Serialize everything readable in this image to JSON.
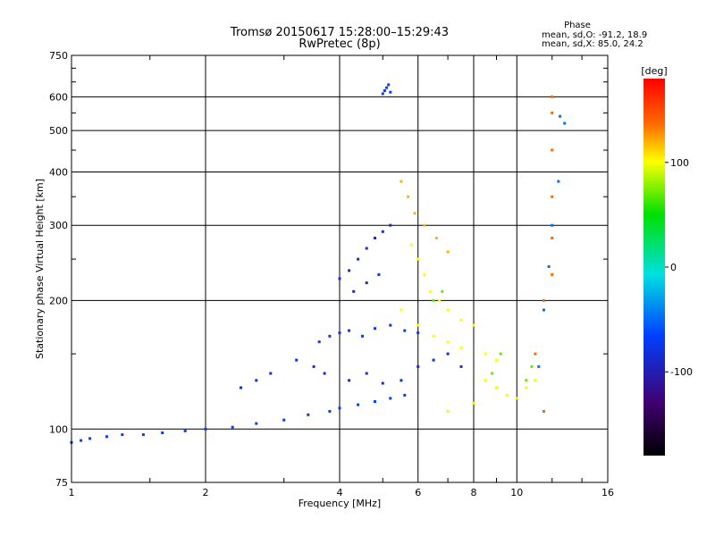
{
  "chart_data": {
    "type": "scatter",
    "title": "Tromsø 20150617 15:28:00–15:29:43",
    "subtitle": "RwPretec (8p)",
    "xlabel": "Frequency [MHz]",
    "ylabel": "Stationary phase Virtual Height [km]",
    "x_scale": "log",
    "y_scale": "log",
    "xlim": [
      1,
      16
    ],
    "ylim": [
      75,
      750
    ],
    "x_ticks": [
      1,
      2,
      4,
      6,
      8,
      10,
      16
    ],
    "y_ticks": [
      75,
      100,
      200,
      300,
      400,
      500,
      600,
      750
    ],
    "grid": true,
    "phase_box": {
      "title": "Phase",
      "line1": "mean, sd,O: -91.2, 18.9",
      "line2": "mean, sd,X: 85.0, 24.2"
    },
    "colorbar": {
      "label": "[deg]",
      "range": [
        -180,
        180
      ],
      "ticks": [
        100,
        0,
        -100
      ]
    },
    "trace_groups": [
      {
        "phase": -100,
        "points": [
          [
            1.0,
            93
          ],
          [
            1.05,
            94
          ],
          [
            1.1,
            95
          ],
          [
            1.2,
            96
          ],
          [
            1.3,
            97
          ],
          [
            1.45,
            97
          ],
          [
            1.6,
            98
          ],
          [
            1.8,
            99
          ],
          [
            2.0,
            100
          ],
          [
            2.3,
            101
          ],
          [
            2.6,
            103
          ],
          [
            3.0,
            105
          ],
          [
            3.4,
            108
          ],
          [
            3.8,
            110
          ],
          [
            4.0,
            112
          ],
          [
            4.4,
            114
          ],
          [
            4.8,
            116
          ],
          [
            5.2,
            118
          ],
          [
            5.6,
            120
          ]
        ]
      },
      {
        "phase": -110,
        "points": [
          [
            2.4,
            125
          ],
          [
            2.6,
            130
          ],
          [
            2.8,
            135
          ],
          [
            3.2,
            145
          ],
          [
            3.5,
            140
          ],
          [
            3.7,
            135
          ],
          [
            4.2,
            130
          ],
          [
            4.6,
            135
          ],
          [
            5.0,
            128
          ],
          [
            5.5,
            130
          ],
          [
            6.0,
            140
          ],
          [
            6.5,
            145
          ],
          [
            7.0,
            150
          ],
          [
            7.5,
            140
          ]
        ]
      },
      {
        "phase": -105,
        "points": [
          [
            3.6,
            160
          ],
          [
            3.8,
            165
          ],
          [
            4.0,
            168
          ],
          [
            4.2,
            170
          ],
          [
            4.5,
            165
          ],
          [
            4.8,
            172
          ],
          [
            5.2,
            175
          ],
          [
            5.6,
            170
          ],
          [
            6.0,
            168
          ]
        ]
      },
      {
        "phase": -110,
        "points": [
          [
            4.0,
            225
          ],
          [
            4.2,
            235
          ],
          [
            4.4,
            250
          ],
          [
            4.6,
            265
          ],
          [
            4.8,
            280
          ],
          [
            5.0,
            290
          ],
          [
            5.2,
            300
          ],
          [
            4.3,
            210
          ],
          [
            4.6,
            220
          ],
          [
            4.9,
            230
          ]
        ]
      },
      {
        "phase": -100,
        "points": [
          [
            5.0,
            610
          ],
          [
            5.05,
            620
          ],
          [
            5.1,
            630
          ],
          [
            5.15,
            640
          ],
          [
            5.2,
            615
          ]
        ]
      },
      {
        "phase": 100,
        "points": [
          [
            5.8,
            270
          ],
          [
            6.0,
            250
          ],
          [
            6.2,
            230
          ],
          [
            6.4,
            210
          ],
          [
            6.7,
            200
          ],
          [
            7.0,
            190
          ],
          [
            7.5,
            180
          ],
          [
            8.0,
            175
          ],
          [
            5.5,
            190
          ],
          [
            6.0,
            175
          ],
          [
            6.5,
            165
          ],
          [
            7.0,
            160
          ],
          [
            7.5,
            155
          ],
          [
            8.5,
            150
          ],
          [
            9.0,
            145
          ]
        ]
      },
      {
        "phase": 120,
        "points": [
          [
            5.5,
            380
          ],
          [
            5.7,
            350
          ],
          [
            5.9,
            320
          ],
          [
            6.2,
            300
          ],
          [
            6.6,
            280
          ],
          [
            7.0,
            260
          ]
        ]
      },
      {
        "phase": 90,
        "points": [
          [
            8.5,
            130
          ],
          [
            9.0,
            125
          ],
          [
            9.5,
            120
          ],
          [
            10.0,
            118
          ],
          [
            10.5,
            125
          ],
          [
            11.0,
            130
          ],
          [
            7.0,
            110
          ],
          [
            8.0,
            115
          ]
        ]
      },
      {
        "phase": 140,
        "points": [
          [
            12.0,
            600
          ],
          [
            12.0,
            550
          ],
          [
            12.0,
            450
          ],
          [
            12.0,
            350
          ],
          [
            12.0,
            280
          ],
          [
            12.0,
            230
          ],
          [
            11.5,
            200
          ],
          [
            11.0,
            150
          ],
          [
            11.5,
            110
          ]
        ]
      },
      {
        "phase": -80,
        "points": [
          [
            12.5,
            540
          ],
          [
            12.8,
            520
          ],
          [
            12.4,
            380
          ],
          [
            12.0,
            300
          ],
          [
            11.8,
            240
          ],
          [
            11.5,
            190
          ],
          [
            11.2,
            140
          ]
        ]
      },
      {
        "phase": 30,
        "points": [
          [
            10.5,
            130
          ],
          [
            10.8,
            140
          ],
          [
            9.2,
            150
          ],
          [
            8.8,
            135
          ],
          [
            6.5,
            200
          ],
          [
            6.8,
            210
          ]
        ]
      }
    ]
  }
}
